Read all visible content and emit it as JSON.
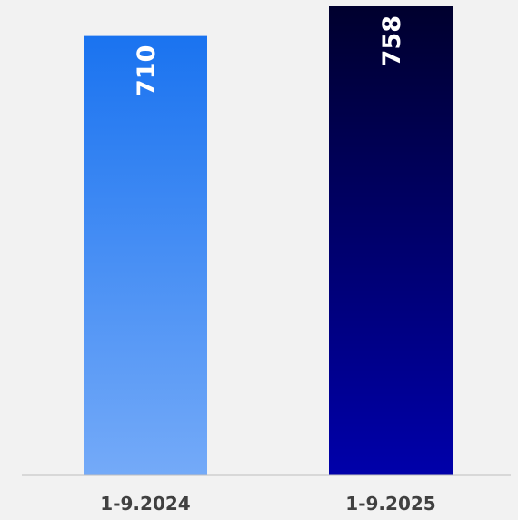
{
  "chart_data": {
    "type": "bar",
    "categories": [
      "1-9.2024",
      "1-9.2025"
    ],
    "values": [
      710,
      758
    ],
    "data_labels": [
      "710",
      "758"
    ],
    "title": "",
    "xlabel": "",
    "ylabel": "",
    "ylim": [
      0,
      758
    ],
    "grid": false,
    "legend": "none",
    "colors": {
      "background": "#f2f2f2",
      "axis": "#bfbfbf",
      "tick_text": "#404040",
      "label_text": "#ffffff",
      "bars": [
        {
          "top": "#1a73f0",
          "bottom": "#74aaf8"
        },
        {
          "top": "#00002e",
          "bottom": "#0000aa"
        }
      ]
    }
  }
}
